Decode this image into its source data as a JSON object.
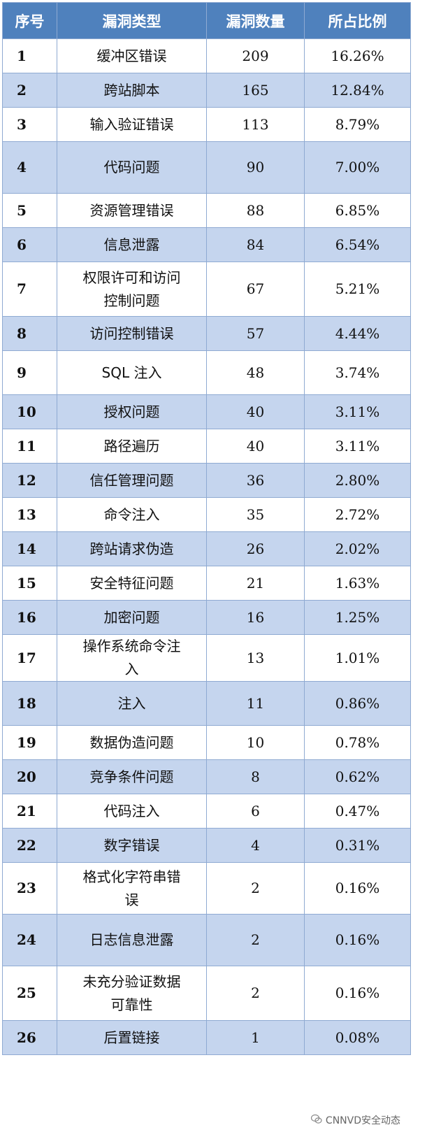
{
  "headers": [
    "序号",
    "漏洞类型",
    "漏洞数量",
    "所占比例"
  ],
  "rows": [
    {
      "id": "1",
      "type": "缓冲区错误",
      "count": "209",
      "pct": "16.26%"
    },
    {
      "id": "2",
      "type": "跨站脚本",
      "count": "165",
      "pct": "12.84%"
    },
    {
      "id": "3",
      "type": "输入验证错误",
      "count": "113",
      "pct": "8.79%"
    },
    {
      "id": "4",
      "type": "代码问题",
      "count": "90",
      "pct": "7.00%"
    },
    {
      "id": "5",
      "type": "资源管理错误",
      "count": "88",
      "pct": "6.85%"
    },
    {
      "id": "6",
      "type": "信息泄露",
      "count": "84",
      "pct": "6.54%"
    },
    {
      "id": "7",
      "type": "权限许可和访问\n控制问题",
      "count": "67",
      "pct": "5.21%"
    },
    {
      "id": "8",
      "type": "访问控制错误",
      "count": "57",
      "pct": "4.44%"
    },
    {
      "id": "9",
      "type": "SQL 注入",
      "count": "48",
      "pct": "3.74%"
    },
    {
      "id": "10",
      "type": "授权问题",
      "count": "40",
      "pct": "3.11%"
    },
    {
      "id": "11",
      "type": "路径遍历",
      "count": "40",
      "pct": "3.11%"
    },
    {
      "id": "12",
      "type": "信任管理问题",
      "count": "36",
      "pct": "2.80%"
    },
    {
      "id": "13",
      "type": "命令注入",
      "count": "35",
      "pct": "2.72%"
    },
    {
      "id": "14",
      "type": "跨站请求伪造",
      "count": "26",
      "pct": "2.02%"
    },
    {
      "id": "15",
      "type": "安全特征问题",
      "count": "21",
      "pct": "1.63%"
    },
    {
      "id": "16",
      "type": "加密问题",
      "count": "16",
      "pct": "1.25%"
    },
    {
      "id": "17",
      "type": "操作系统命令注\n入",
      "count": "13",
      "pct": "1.01%"
    },
    {
      "id": "18",
      "type": "注入",
      "count": "11",
      "pct": "0.86%"
    },
    {
      "id": "19",
      "type": "数据伪造问题",
      "count": "10",
      "pct": "0.78%"
    },
    {
      "id": "20",
      "type": "竞争条件问题",
      "count": "8",
      "pct": "0.62%"
    },
    {
      "id": "21",
      "type": "代码注入",
      "count": "6",
      "pct": "0.47%"
    },
    {
      "id": "22",
      "type": "数字错误",
      "count": "4",
      "pct": "0.31%"
    },
    {
      "id": "23",
      "type": "格式化字符串错\n误",
      "count": "2",
      "pct": "0.16%"
    },
    {
      "id": "24",
      "type": "日志信息泄露",
      "count": "2",
      "pct": "0.16%"
    },
    {
      "id": "25",
      "type": "未充分验证数据\n可靠性",
      "count": "2",
      "pct": "0.16%"
    },
    {
      "id": "26",
      "type": "后置链接",
      "count": "1",
      "pct": "0.08%"
    }
  ],
  "watermark": {
    "icon": "wechat-icon",
    "text": "CNNVD安全动态"
  },
  "colors": {
    "header_bg": "#4f81bd",
    "stripe": "#c5d5ee",
    "border": "#8faad2"
  }
}
